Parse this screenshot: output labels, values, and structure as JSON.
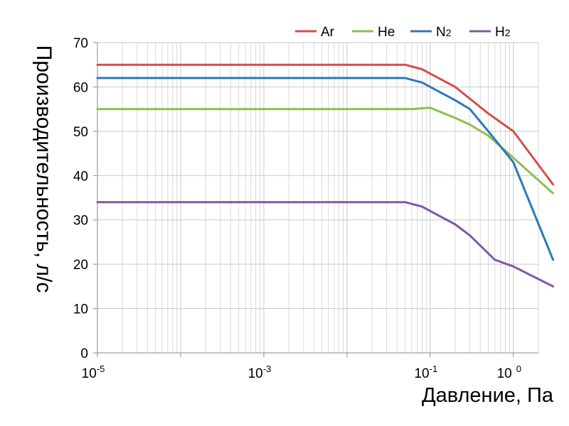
{
  "chart_data": {
    "type": "line",
    "title": "",
    "xlabel": "Давление, Па",
    "ylabel": "Производительность, л/с",
    "x_scale": "log",
    "xlim": [
      1e-05,
      2
    ],
    "ylim": [
      0,
      70
    ],
    "y_ticks": [
      0,
      10,
      20,
      30,
      40,
      50,
      60,
      70
    ],
    "x_ticks": [
      {
        "value": 1e-05,
        "base": "10",
        "exp": "-5"
      },
      {
        "value": 0.001,
        "base": "10",
        "exp": "-3"
      },
      {
        "value": 0.1,
        "base": "10",
        "exp": "-1"
      },
      {
        "value": 1,
        "base": "10",
        "exp": "0"
      }
    ],
    "grid": true,
    "legend_position": "top-right",
    "series": [
      {
        "name": "Ar",
        "color": "#d0504a",
        "x": [
          1e-05,
          0.03,
          0.05,
          0.08,
          0.1,
          0.2,
          0.5,
          1,
          3
        ],
        "y": [
          65,
          65,
          65,
          64,
          63,
          60,
          54,
          50,
          38
        ]
      },
      {
        "name": "He",
        "color": "#8ebf4f",
        "x": [
          1e-05,
          0.06,
          0.1,
          0.2,
          0.3,
          0.5,
          1,
          3
        ],
        "y": [
          55,
          55,
          55.3,
          53,
          51.5,
          49,
          44,
          36
        ]
      },
      {
        "name": "N2",
        "color": "#2e78b8",
        "x": [
          1e-05,
          0.03,
          0.05,
          0.08,
          0.1,
          0.2,
          0.3,
          0.5,
          1,
          3
        ],
        "y": [
          62,
          62,
          62,
          61,
          60,
          57,
          55,
          50,
          43,
          21
        ]
      },
      {
        "name": "H2",
        "color": "#7e5aa3",
        "x": [
          1e-05,
          0.03,
          0.05,
          0.08,
          0.1,
          0.2,
          0.3,
          0.6,
          1,
          3
        ],
        "y": [
          34,
          34,
          34,
          33,
          32,
          29,
          26.5,
          21,
          19.5,
          15
        ]
      }
    ]
  }
}
